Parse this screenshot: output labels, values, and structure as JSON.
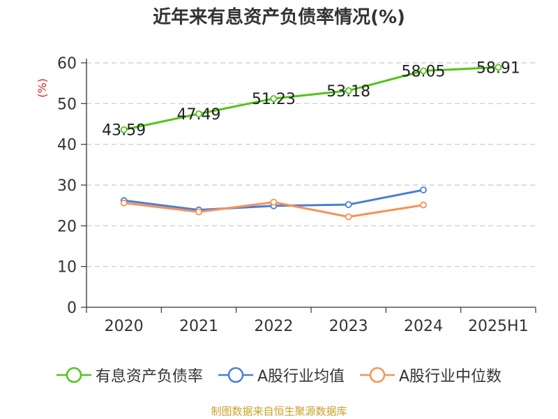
{
  "title": "近年来有息资产负债率情况(%)",
  "source": "制图数据来自恒生聚源数据库",
  "chart_data": {
    "type": "line",
    "title": "近年来有息资产负债率情况(%)",
    "ylabel": "(%)",
    "xlabel": "",
    "ylim": [
      0,
      60
    ],
    "yticks": [
      "0",
      "10",
      "20",
      "30",
      "40",
      "50",
      "60"
    ],
    "grid": true,
    "legend_position": "bottom",
    "categories": [
      "2020",
      "2021",
      "2022",
      "2023",
      "2024",
      "2025H1"
    ],
    "series": [
      {
        "name": "有息资产负债率",
        "color": "#52c41a",
        "values": [
          43.59,
          47.49,
          51.23,
          53.18,
          58.05,
          58.91
        ],
        "labels": [
          "43.59",
          "47.49",
          "51.23",
          "53.18",
          "58.05",
          "58.91"
        ]
      },
      {
        "name": "A股行业均值",
        "color": "#4a7fd4",
        "values": [
          26.2,
          23.9,
          24.9,
          25.2,
          28.8,
          null
        ]
      },
      {
        "name": "A股行业中位数",
        "color": "#f79255",
        "values": [
          25.6,
          23.4,
          25.8,
          22.2,
          25.1,
          null
        ]
      }
    ]
  }
}
